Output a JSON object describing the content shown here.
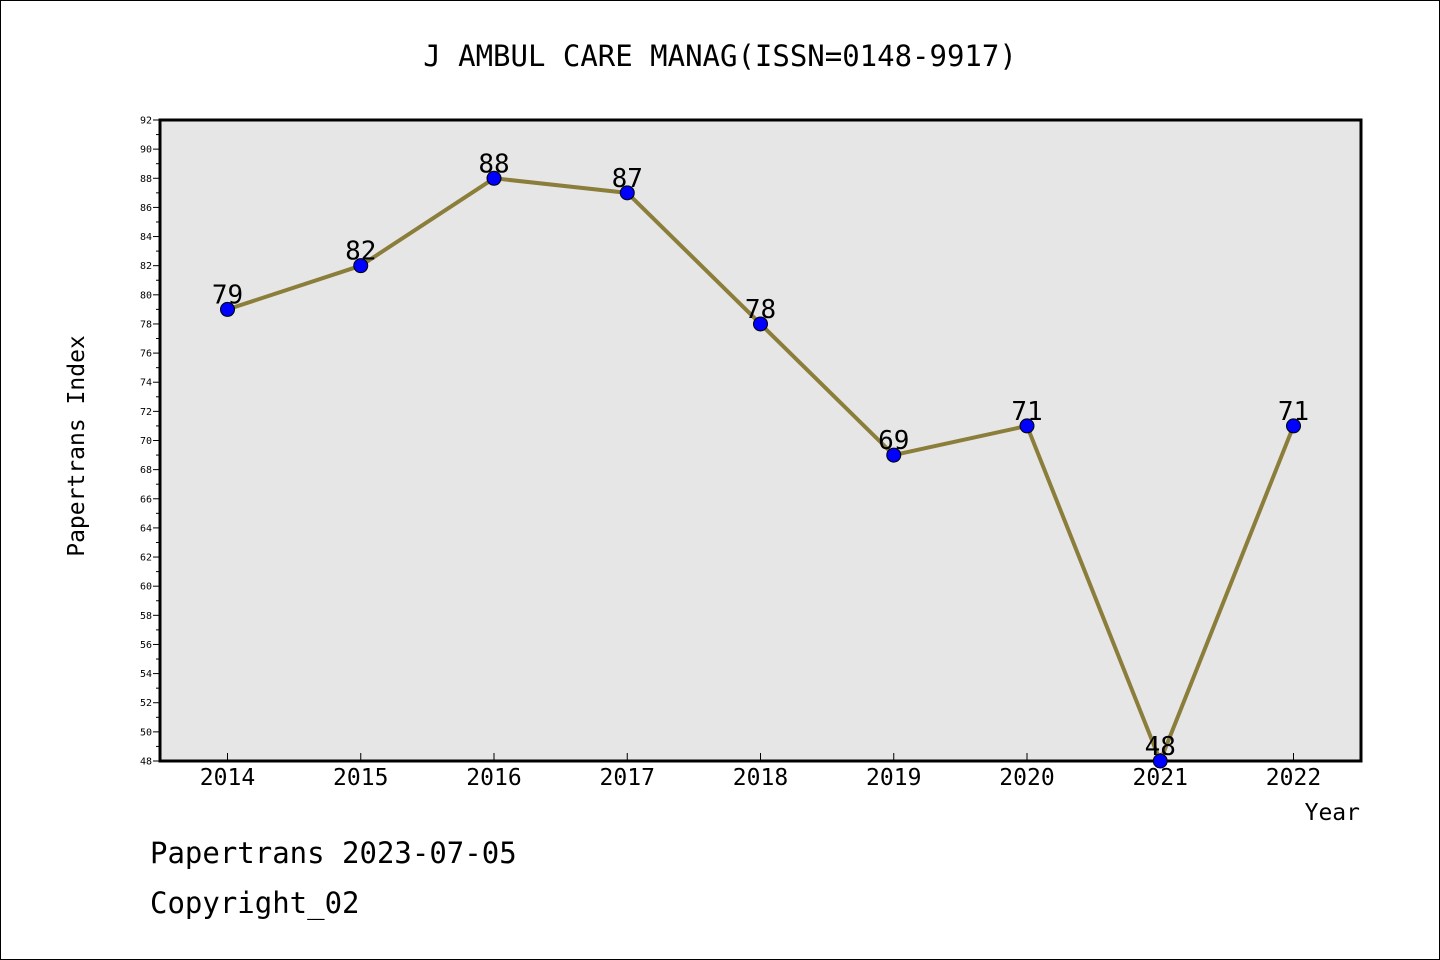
{
  "chart_data": {
    "type": "line",
    "title": "J AMBUL CARE MANAG(ISSN=0148-9917)",
    "xlabel": "Year",
    "ylabel": "Papertrans Index",
    "categories": [
      "2014",
      "2015",
      "2016",
      "2017",
      "2018",
      "2019",
      "2020",
      "2021",
      "2022"
    ],
    "series": [
      {
        "values": [
          79,
          82,
          88,
          87,
          78,
          69,
          71,
          48,
          71
        ]
      }
    ],
    "ylim": [
      48,
      92
    ],
    "yticks": [
      "48",
      "50",
      "52",
      "54",
      "56",
      "58",
      "60",
      "62",
      "64",
      "66",
      "68",
      "70",
      "72",
      "74",
      "76",
      "78",
      "80",
      "82",
      "84",
      "86",
      "88",
      "90",
      "92"
    ],
    "grid": false,
    "plot_background": "#e6e6e6",
    "line_color": "#8b7d3a",
    "marker_color": "#0000ff"
  },
  "footer": {
    "line1": "Papertrans 2023-07-05",
    "line2": "Copyright_02"
  }
}
